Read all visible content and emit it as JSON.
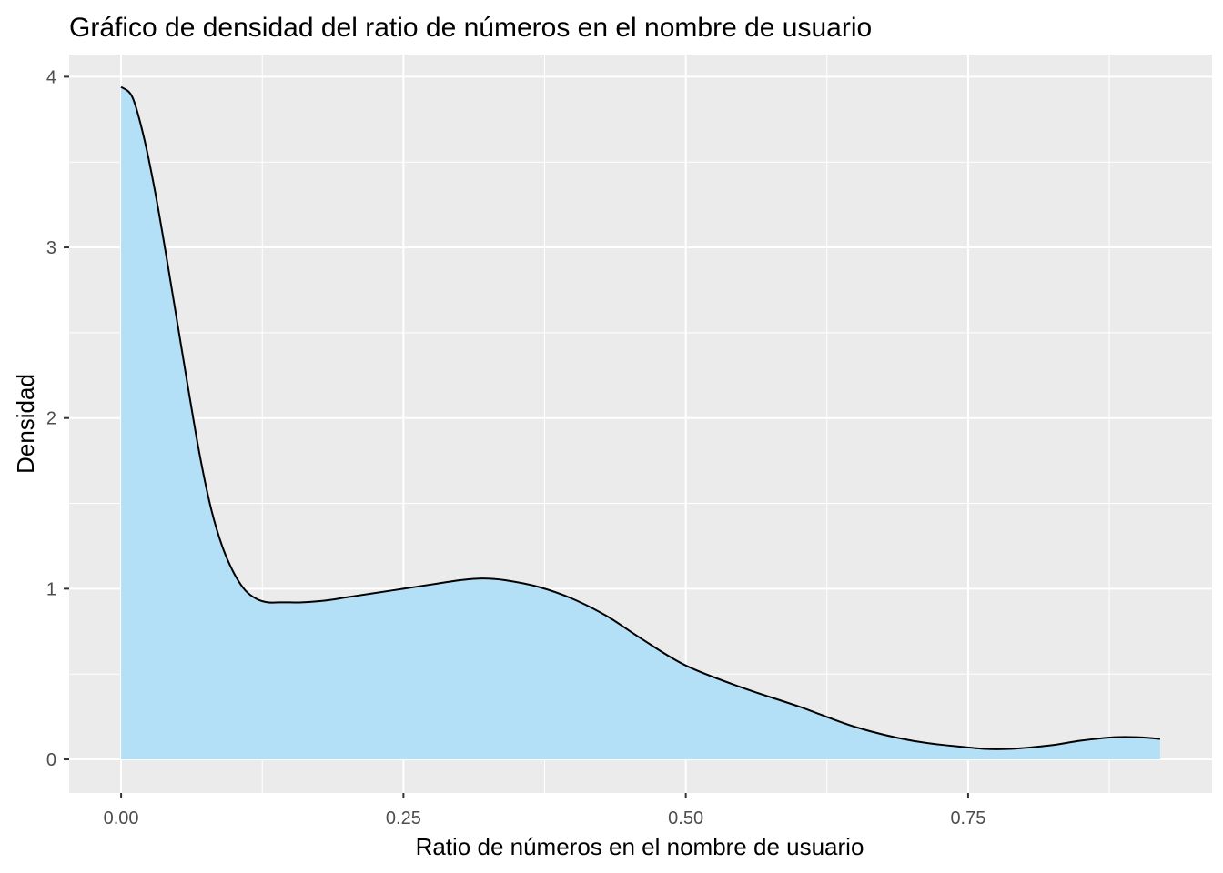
{
  "chart_data": {
    "type": "area",
    "title": "Gráfico de densidad del ratio de números en el nombre de usuario",
    "xlabel": "Ratio de números en el nombre de usuario",
    "ylabel": "Densidad",
    "xlim": [
      -0.046,
      0.966
    ],
    "ylim": [
      -0.197,
      4.13
    ],
    "x_ticks": [
      {
        "value": 0.0,
        "label": "0.00"
      },
      {
        "value": 0.25,
        "label": "0.25"
      },
      {
        "value": 0.5,
        "label": "0.50"
      },
      {
        "value": 0.75,
        "label": "0.75"
      }
    ],
    "y_ticks": [
      {
        "value": 0,
        "label": "0"
      },
      {
        "value": 1,
        "label": "1"
      },
      {
        "value": 2,
        "label": "2"
      },
      {
        "value": 3,
        "label": "3"
      },
      {
        "value": 4,
        "label": "4"
      }
    ],
    "grid": true,
    "legend": "none",
    "colors": {
      "fill": "#B3E0F7",
      "line": "#000000",
      "panel": "#EBEBEB",
      "grid": "#FFFFFF"
    },
    "series": [
      {
        "x": [
          0.0,
          0.01,
          0.02,
          0.03,
          0.04,
          0.05,
          0.06,
          0.07,
          0.08,
          0.09,
          0.1,
          0.11,
          0.12,
          0.13,
          0.14,
          0.15,
          0.16,
          0.18,
          0.2,
          0.22,
          0.25,
          0.28,
          0.3,
          0.32,
          0.34,
          0.37,
          0.4,
          0.43,
          0.46,
          0.5,
          0.55,
          0.6,
          0.65,
          0.7,
          0.75,
          0.78,
          0.82,
          0.85,
          0.88,
          0.9,
          0.92
        ],
        "y": [
          3.94,
          3.88,
          3.65,
          3.33,
          2.95,
          2.55,
          2.15,
          1.77,
          1.46,
          1.24,
          1.09,
          0.99,
          0.94,
          0.92,
          0.92,
          0.92,
          0.92,
          0.93,
          0.95,
          0.97,
          1.0,
          1.03,
          1.05,
          1.06,
          1.05,
          1.01,
          0.94,
          0.84,
          0.71,
          0.55,
          0.42,
          0.31,
          0.19,
          0.11,
          0.07,
          0.06,
          0.08,
          0.11,
          0.13,
          0.13,
          0.12
        ]
      }
    ]
  }
}
